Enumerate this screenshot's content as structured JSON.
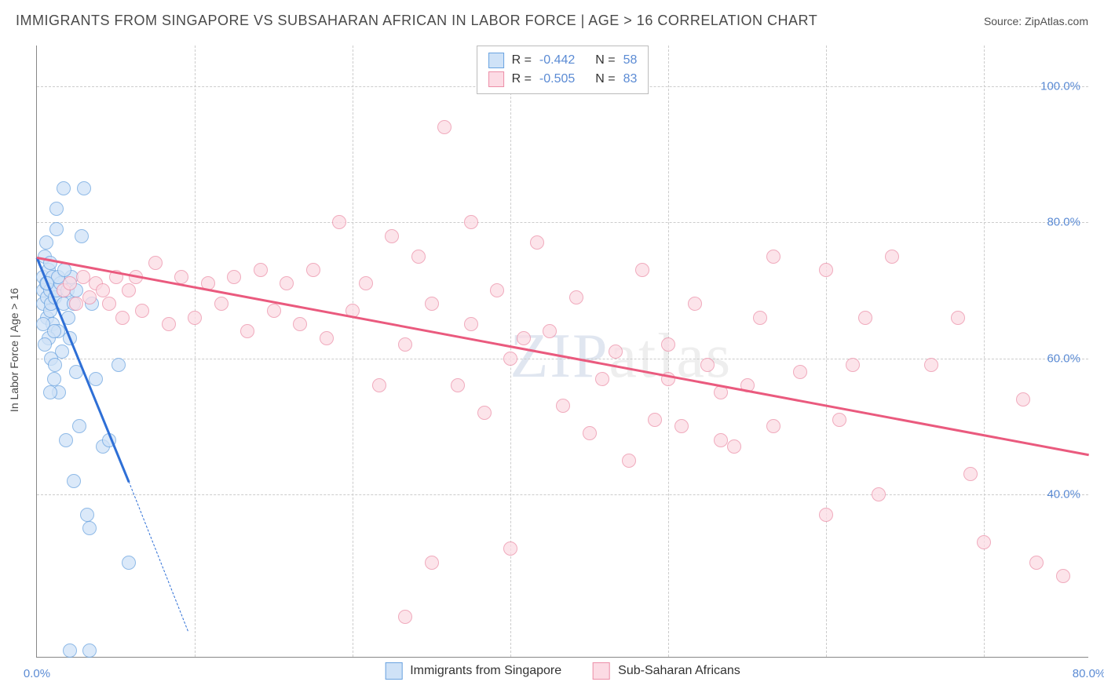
{
  "title": "IMMIGRANTS FROM SINGAPORE VS SUBSAHARAN AFRICAN IN LABOR FORCE | AGE > 16 CORRELATION CHART",
  "source": "Source: ZipAtlas.com",
  "chart": {
    "type": "scatter",
    "ylabel": "In Labor Force | Age > 16",
    "xlim": [
      0,
      80
    ],
    "ylim": [
      16,
      106
    ],
    "ytick_positions": [
      40,
      60,
      80,
      100
    ],
    "ytick_labels": [
      "40.0%",
      "60.0%",
      "80.0%",
      "100.0%"
    ],
    "xtick_positions": [
      0,
      80
    ],
    "xtick_labels": [
      "0.0%",
      "80.0%"
    ],
    "xgrid_positions": [
      12,
      24,
      36,
      48,
      60,
      72
    ],
    "background_color": "#ffffff",
    "grid_color": "#cccccc",
    "axis_color": "#888888",
    "tick_label_color": "#5b8bd4",
    "watermark": "ZIPatlas",
    "series": [
      {
        "name": "Immigrants from Singapore",
        "color_fill": "#cfe2f7",
        "color_stroke": "#6aa3e0",
        "line_color": "#2e6fd6",
        "correlation": "-0.442",
        "n": "58",
        "regression": {
          "x1": 0,
          "y1": 75,
          "x2": 7,
          "y2": 42,
          "ext_x1": 7,
          "ext_y1": 42,
          "ext_x2": 11.5,
          "ext_y2": 20
        },
        "points": [
          [
            0.5,
            68
          ],
          [
            0.5,
            70
          ],
          [
            0.5,
            72
          ],
          [
            0.7,
            71
          ],
          [
            0.8,
            69
          ],
          [
            0.8,
            66
          ],
          [
            0.9,
            73
          ],
          [
            1.0,
            67
          ],
          [
            1.0,
            70
          ],
          [
            1.1,
            68
          ],
          [
            1.2,
            72
          ],
          [
            1.2,
            65
          ],
          [
            1.3,
            57
          ],
          [
            1.4,
            69
          ],
          [
            1.5,
            70
          ],
          [
            1.5,
            79
          ],
          [
            1.6,
            64
          ],
          [
            1.7,
            55
          ],
          [
            1.8,
            71
          ],
          [
            1.9,
            61
          ],
          [
            2.0,
            85
          ],
          [
            2.0,
            68
          ],
          [
            2.2,
            48
          ],
          [
            2.3,
            70
          ],
          [
            2.5,
            63
          ],
          [
            2.6,
            72
          ],
          [
            2.8,
            68
          ],
          [
            2.8,
            42
          ],
          [
            3.0,
            70
          ],
          [
            3.2,
            50
          ],
          [
            3.4,
            78
          ],
          [
            3.6,
            85
          ],
          [
            3.8,
            37
          ],
          [
            4.0,
            35
          ],
          [
            4.2,
            68
          ],
          [
            4.5,
            57
          ],
          [
            5.0,
            47
          ],
          [
            5.5,
            48
          ],
          [
            6.2,
            59
          ],
          [
            7.0,
            30
          ],
          [
            2.5,
            17
          ],
          [
            4.0,
            17
          ],
          [
            1.5,
            82
          ],
          [
            0.6,
            75
          ],
          [
            0.9,
            63
          ],
          [
            1.1,
            60
          ],
          [
            1.4,
            59
          ],
          [
            1.0,
            74
          ],
          [
            0.7,
            77
          ],
          [
            0.5,
            65
          ],
          [
            0.6,
            62
          ],
          [
            1.3,
            64
          ],
          [
            1.6,
            72
          ],
          [
            2.1,
            73
          ],
          [
            2.4,
            66
          ],
          [
            3.0,
            58
          ],
          [
            1.0,
            55
          ],
          [
            0.8,
            71
          ]
        ]
      },
      {
        "name": "Sub-Saharan Africans",
        "color_fill": "#fcdbe4",
        "color_stroke": "#ec8fa8",
        "line_color": "#ea5a7e",
        "correlation": "-0.505",
        "n": "83",
        "regression": {
          "x1": 0,
          "y1": 75,
          "x2": 80,
          "y2": 46
        },
        "points": [
          [
            2,
            70
          ],
          [
            2.5,
            71
          ],
          [
            3,
            68
          ],
          [
            3.5,
            72
          ],
          [
            4,
            69
          ],
          [
            4.5,
            71
          ],
          [
            5,
            70
          ],
          [
            5.5,
            68
          ],
          [
            6,
            72
          ],
          [
            6.5,
            66
          ],
          [
            7,
            70
          ],
          [
            7.5,
            72
          ],
          [
            8,
            67
          ],
          [
            9,
            74
          ],
          [
            10,
            65
          ],
          [
            11,
            72
          ],
          [
            12,
            66
          ],
          [
            13,
            71
          ],
          [
            14,
            68
          ],
          [
            15,
            72
          ],
          [
            16,
            64
          ],
          [
            17,
            73
          ],
          [
            18,
            67
          ],
          [
            19,
            71
          ],
          [
            20,
            65
          ],
          [
            21,
            73
          ],
          [
            22,
            63
          ],
          [
            23,
            80
          ],
          [
            24,
            67
          ],
          [
            25,
            71
          ],
          [
            26,
            56
          ],
          [
            27,
            78
          ],
          [
            28,
            62
          ],
          [
            28,
            22
          ],
          [
            29,
            75
          ],
          [
            30,
            68
          ],
          [
            30,
            30
          ],
          [
            31,
            94
          ],
          [
            32,
            56
          ],
          [
            33,
            65
          ],
          [
            33,
            80
          ],
          [
            34,
            52
          ],
          [
            35,
            70
          ],
          [
            36,
            60
          ],
          [
            37,
            63
          ],
          [
            38,
            77
          ],
          [
            39,
            64
          ],
          [
            40,
            53
          ],
          [
            41,
            69
          ],
          [
            42,
            49
          ],
          [
            43,
            57
          ],
          [
            44,
            61
          ],
          [
            45,
            45
          ],
          [
            46,
            73
          ],
          [
            47,
            51
          ],
          [
            48,
            62
          ],
          [
            49,
            50
          ],
          [
            50,
            68
          ],
          [
            51,
            59
          ],
          [
            52,
            48
          ],
          [
            53,
            47
          ],
          [
            54,
            56
          ],
          [
            55,
            66
          ],
          [
            56,
            50
          ],
          [
            56,
            75
          ],
          [
            58,
            58
          ],
          [
            60,
            37
          ],
          [
            61,
            51
          ],
          [
            62,
            59
          ],
          [
            63,
            66
          ],
          [
            64,
            40
          ],
          [
            65,
            75
          ],
          [
            68,
            59
          ],
          [
            70,
            66
          ],
          [
            71,
            43
          ],
          [
            72,
            33
          ],
          [
            76,
            30
          ],
          [
            78,
            28
          ],
          [
            75,
            54
          ],
          [
            60,
            73
          ],
          [
            36,
            32
          ],
          [
            48,
            57
          ],
          [
            52,
            55
          ]
        ]
      }
    ],
    "bottom_legend": [
      {
        "label": "Immigrants from Singapore",
        "fill": "#cfe2f7",
        "stroke": "#6aa3e0"
      },
      {
        "label": "Sub-Saharan Africans",
        "fill": "#fcdbe4",
        "stroke": "#ec8fa8"
      }
    ]
  }
}
